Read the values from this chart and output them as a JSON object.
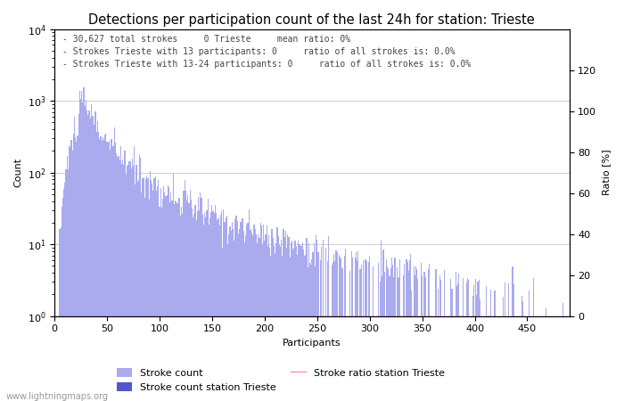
{
  "title": "Detections per participation count of the last 24h for station: Trieste",
  "xlabel": "Participants",
  "ylabel_left": "Count",
  "ylabel_right": "Ratio [%]",
  "annotation_line1": "- 30,627 total strokes     0 Trieste     mean ratio: 0%",
  "annotation_line2": "- Strokes Trieste with 13 participants: 0     ratio of all strokes is: 0.0%",
  "annotation_line3": "- Strokes Trieste with 13-24 participants: 0     ratio of all strokes is: 0.0%",
  "bar_color_global": "#aaaaee",
  "bar_color_station": "#5555cc",
  "ratio_line_color": "#ff88cc",
  "watermark": "www.lightningmaps.org",
  "legend_entries": [
    "Stroke count",
    "Stroke count station Trieste",
    "Stroke ratio station Trieste"
  ],
  "xlim": [
    0,
    490
  ],
  "right_ylim": [
    0,
    140
  ],
  "right_yticks": [
    0,
    20,
    40,
    60,
    80,
    100,
    120
  ],
  "title_fontsize": 10.5,
  "annotation_fontsize": 7,
  "axis_fontsize": 8,
  "legend_fontsize": 8
}
